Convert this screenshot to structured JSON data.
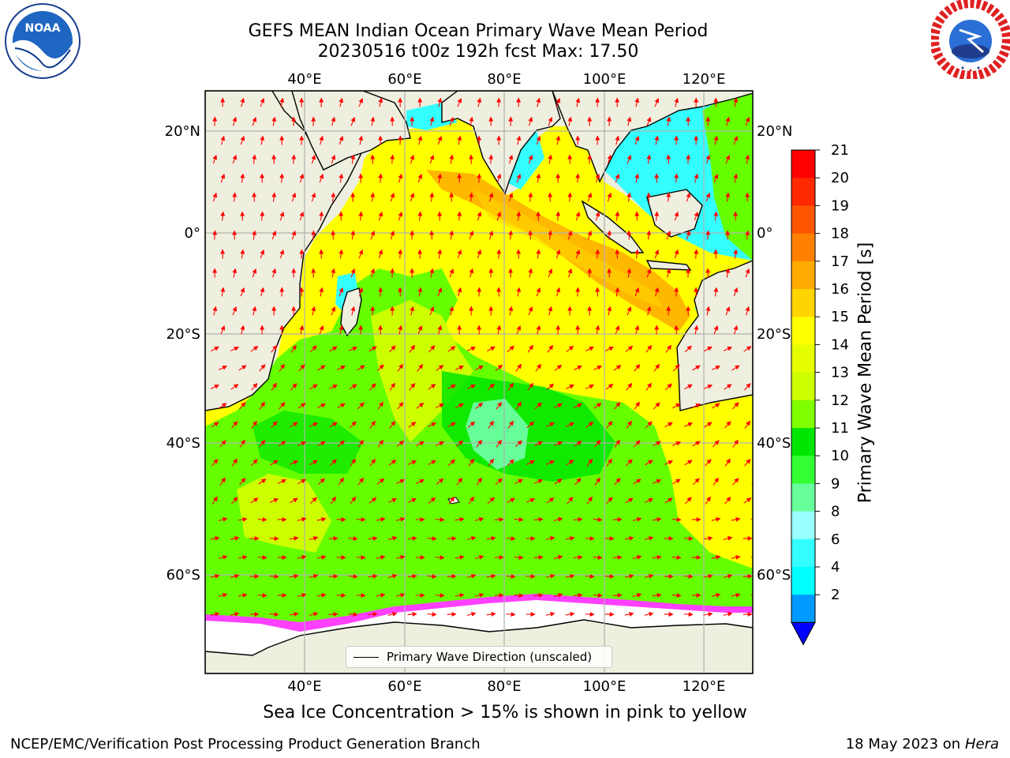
{
  "title": {
    "line1": "GEFS MEAN Indian Ocean Primary Wave Mean Period",
    "line2": "20230516 t00z 192h fcst   Max: 17.50"
  },
  "logos": {
    "left": {
      "text": "NOAA",
      "icon": "noaa-logo"
    },
    "right": {
      "icon": "national-weather-service-logo"
    }
  },
  "map": {
    "lon_labels": [
      "40°E",
      "60°E",
      "80°E",
      "100°E",
      "120°E"
    ],
    "lat_labels": [
      "20°N",
      "0°",
      "20°S",
      "40°S",
      "60°S"
    ],
    "ocean_field": "Primary Wave Mean Period",
    "colors": {
      "land": "#efefdf",
      "ice": "#ffffff",
      "ice_edge": "#ff40ff",
      "arrow": "#ff0000",
      "grid": "#b0b0b0"
    }
  },
  "legend": {
    "label": "Primary Wave Direction (unscaled)"
  },
  "colorbar": {
    "label": "Primary Wave Mean Period [s]",
    "ticks": [
      "21",
      "20",
      "19",
      "18",
      "17",
      "16",
      "15",
      "14",
      "13",
      "12",
      "11",
      "10",
      "9",
      "8",
      "6",
      "4",
      "2"
    ],
    "colors": [
      "#ff0000",
      "#ff2800",
      "#ff5500",
      "#ff7f00",
      "#ffaa00",
      "#ffd400",
      "#ffff00",
      "#e6ff00",
      "#ccff00",
      "#80ff00",
      "#00e600",
      "#33ff33",
      "#66ff99",
      "#99ffff",
      "#33ffff",
      "#00ffff",
      "#0099ff"
    ],
    "extend_color": "#0000ff"
  },
  "subtitle": "Sea Ice Concentration > 15% is shown in pink to yellow",
  "footer": {
    "left": "NCEP/EMC/Verification Post Processing Product Generation Branch",
    "right_date": "18 May 2023 on",
    "right_machine": "Hera"
  }
}
